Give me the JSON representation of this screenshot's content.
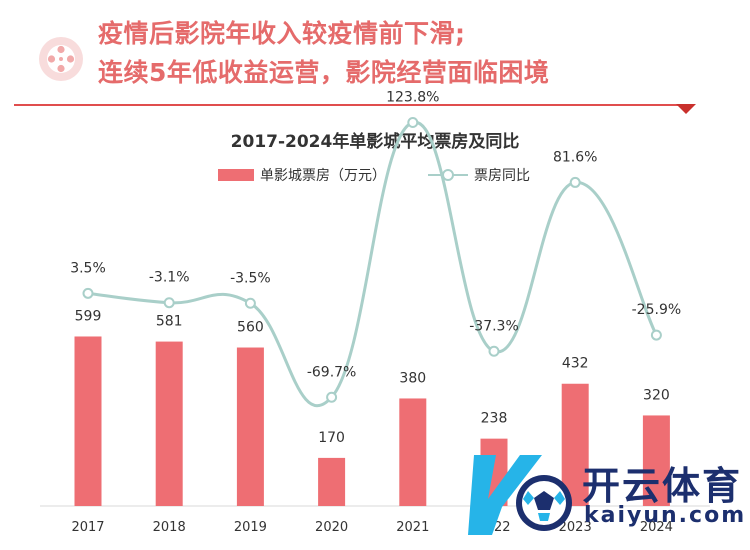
{
  "header": {
    "line1": "疫情后影院年收入较疫情前下滑;",
    "line2": "连续5年低收益运营，影院经营面临困境",
    "icon": "film-reel-icon",
    "accent_color": "#e56b6b"
  },
  "watermark": {
    "name": "开云体育",
    "domain": "kaiyun.com",
    "icon": "soccer-ball-logo-icon"
  },
  "chart_data": {
    "type": "bar",
    "title": "2017-2024年单影城平均票房及同比",
    "legend_position": "top",
    "grid": false,
    "categories": [
      "2017",
      "2018",
      "2019",
      "2020",
      "2021",
      "2022",
      "2023",
      "2024"
    ],
    "series": [
      {
        "name": "单影城票房（万元）",
        "type": "bar",
        "color": "#ee6e73",
        "values": [
          599,
          581,
          560,
          170,
          380,
          238,
          432,
          320
        ],
        "labels": [
          "599",
          "581",
          "560",
          "170",
          "380",
          "238",
          "432",
          "320"
        ]
      },
      {
        "name": "票房同比",
        "type": "line",
        "color": "#a9cfc9",
        "values": [
          3.5,
          -3.1,
          -3.5,
          -69.7,
          123.8,
          -37.3,
          81.6,
          -25.9
        ],
        "labels": [
          "3.5%",
          "-3.1%",
          "-3.5%",
          "-69.7%",
          "123.8%",
          "-37.3%",
          "81.6%",
          "-25.9%"
        ]
      }
    ]
  }
}
